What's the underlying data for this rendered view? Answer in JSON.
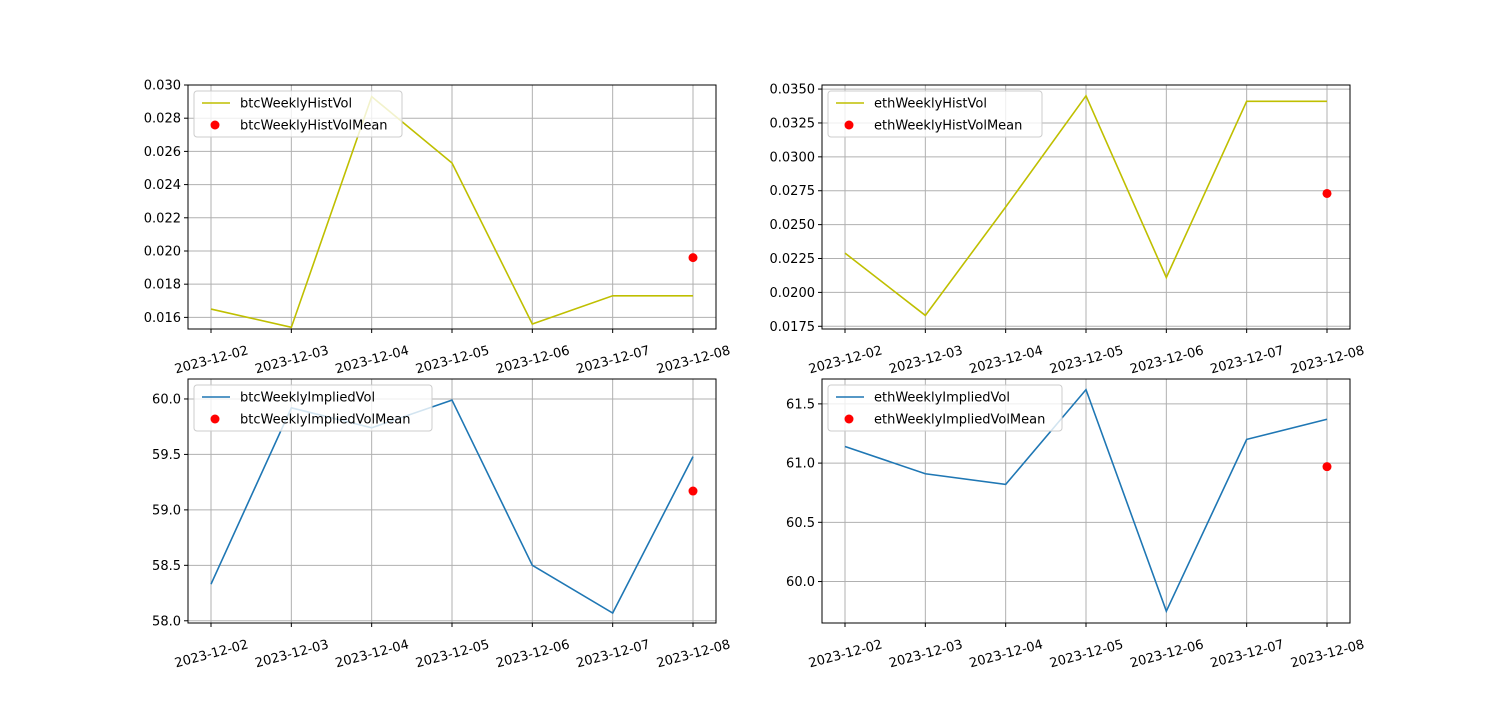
{
  "chart_data": [
    {
      "type": "line",
      "x": [
        "2023-12-02",
        "2023-12-03",
        "2023-12-04",
        "2023-12-05",
        "2023-12-06",
        "2023-12-07",
        "2023-12-08"
      ],
      "series": [
        {
          "name": "btcWeeklyHistVol",
          "kind": "line",
          "color": "#bfbf00",
          "values": [
            0.0165,
            0.0154,
            0.0293,
            0.0253,
            0.0156,
            0.0173,
            0.0173
          ]
        },
        {
          "name": "btcWeeklyHistVolMean",
          "kind": "scatter",
          "color": "#ff0000",
          "points": [
            {
              "x": "2023-12-08",
              "y": 0.0196
            }
          ]
        }
      ],
      "ylim": [
        0.0153,
        0.03
      ],
      "yticks": [
        0.016,
        0.018,
        0.02,
        0.022,
        0.024,
        0.026,
        0.028,
        0.03
      ],
      "ytick_labels": [
        "0.016",
        "0.018",
        "0.020",
        "0.022",
        "0.024",
        "0.026",
        "0.028",
        "0.030"
      ],
      "grid": true,
      "legend": "upper-left"
    },
    {
      "type": "line",
      "x": [
        "2023-12-02",
        "2023-12-03",
        "2023-12-04",
        "2023-12-05",
        "2023-12-06",
        "2023-12-07",
        "2023-12-08"
      ],
      "series": [
        {
          "name": "ethWeeklyHistVol",
          "kind": "line",
          "color": "#bfbf00",
          "values": [
            0.0229,
            0.0183,
            0.0263,
            0.0345,
            0.0211,
            0.0341,
            0.0341
          ]
        },
        {
          "name": "ethWeeklyHistVolMean",
          "kind": "scatter",
          "color": "#ff0000",
          "points": [
            {
              "x": "2023-12-08",
              "y": 0.0273
            }
          ]
        }
      ],
      "ylim": [
        0.0173,
        0.0353
      ],
      "yticks": [
        0.0175,
        0.02,
        0.0225,
        0.025,
        0.0275,
        0.03,
        0.0325,
        0.035
      ],
      "ytick_labels": [
        "0.0175",
        "0.0200",
        "0.0225",
        "0.0250",
        "0.0275",
        "0.0300",
        "0.0325",
        "0.0350"
      ],
      "grid": true,
      "legend": "upper-left"
    },
    {
      "type": "line",
      "x": [
        "2023-12-02",
        "2023-12-03",
        "2023-12-04",
        "2023-12-05",
        "2023-12-06",
        "2023-12-07",
        "2023-12-08"
      ],
      "series": [
        {
          "name": "btcWeeklyImpliedVol",
          "kind": "line",
          "color": "#1f77b4",
          "values": [
            58.33,
            59.92,
            59.74,
            59.99,
            58.5,
            58.07,
            59.48
          ]
        },
        {
          "name": "btcWeeklyImpliedVolMean",
          "kind": "scatter",
          "color": "#ff0000",
          "points": [
            {
              "x": "2023-12-08",
              "y": 59.17
            }
          ]
        }
      ],
      "ylim": [
        57.98,
        60.18
      ],
      "yticks": [
        58.0,
        58.5,
        59.0,
        59.5,
        60.0
      ],
      "ytick_labels": [
        "58.0",
        "58.5",
        "59.0",
        "59.5",
        "60.0"
      ],
      "grid": true,
      "legend": "upper-left"
    },
    {
      "type": "line",
      "x": [
        "2023-12-02",
        "2023-12-03",
        "2023-12-04",
        "2023-12-05",
        "2023-12-06",
        "2023-12-07",
        "2023-12-08"
      ],
      "series": [
        {
          "name": "ethWeeklyImpliedVol",
          "kind": "line",
          "color": "#1f77b4",
          "values": [
            61.14,
            60.91,
            60.82,
            61.62,
            59.75,
            61.2,
            61.37
          ]
        },
        {
          "name": "ethWeeklyImpliedVolMean",
          "kind": "scatter",
          "color": "#ff0000",
          "points": [
            {
              "x": "2023-12-08",
              "y": 60.97
            }
          ]
        }
      ],
      "ylim": [
        59.65,
        61.71
      ],
      "yticks": [
        60.0,
        60.5,
        61.0,
        61.5
      ],
      "ytick_labels": [
        "60.0",
        "60.5",
        "61.0",
        "61.5"
      ],
      "grid": true,
      "legend": "upper-left"
    }
  ]
}
